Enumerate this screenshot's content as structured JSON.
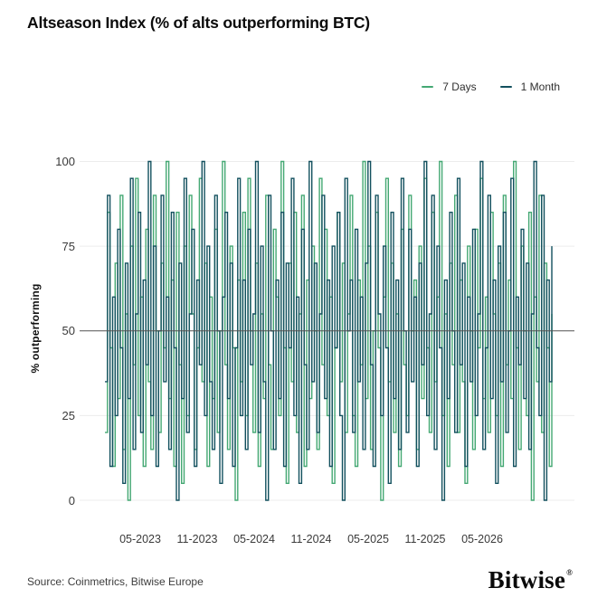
{
  "title": "Altseason Index (% of alts outperforming BTC)",
  "legend": {
    "items": [
      {
        "label": "7 Days",
        "color": "#44A873"
      },
      {
        "label": "1 Month",
        "color": "#12505E"
      }
    ]
  },
  "y_axis": {
    "title": "% outperforming",
    "tick_labels": [
      "100",
      "75",
      "50",
      "25",
      "0"
    ]
  },
  "x_axis": {
    "tick_labels": [
      "05-2023",
      "11-2023",
      "05-2024",
      "11-2024",
      "05-2025",
      "11-2025",
      "05-2026"
    ]
  },
  "footer": {
    "source": "Source: Coinmetrics, Bitwise Europe",
    "brand": "Bitwise",
    "registered_mark": "®"
  },
  "colors": {
    "grid": "#ECECEC",
    "reference_line": "#525252",
    "series_7d": "#44A873",
    "series_1m": "#12505E",
    "title_text": "#0B0B0B",
    "tick_text": "#3A3A3A"
  },
  "chart_data": {
    "type": "line",
    "title": "Altseason Index (% of alts outperforming BTC)",
    "xlabel": "",
    "ylabel": "% outperforming",
    "ylim": [
      0,
      100
    ],
    "y_ticks": [
      0,
      25,
      50,
      75,
      100
    ],
    "x_tick_labels": [
      "05-2023",
      "11-2023",
      "05-2024",
      "11-2024",
      "05-2025",
      "11-2025",
      "05-2026"
    ],
    "reference_line_y": 50,
    "grid": "horizontal",
    "legend_position": "top-right",
    "series": [
      {
        "name": "7 Days",
        "color": "#44A873",
        "values": [
          20,
          85,
          45,
          10,
          70,
          30,
          90,
          15,
          55,
          0,
          75,
          40,
          95,
          25,
          60,
          10,
          80,
          35,
          15,
          90,
          50,
          20,
          70,
          45,
          100,
          30,
          65,
          10,
          85,
          40,
          5,
          75,
          25,
          90,
          55,
          15,
          45,
          95,
          35,
          70,
          10,
          60,
          30,
          80,
          20,
          50,
          100,
          40,
          15,
          75,
          45,
          0,
          65,
          35,
          85,
          25,
          95,
          50,
          20,
          70,
          10,
          55,
          30,
          90,
          40,
          15,
          80,
          60,
          25,
          100,
          45,
          5,
          70,
          35,
          85,
          20,
          55,
          90,
          10,
          65,
          30,
          75,
          50,
          15,
          95,
          40,
          80,
          25,
          60,
          5,
          45,
          85,
          35,
          70,
          20,
          55,
          90,
          25,
          10,
          65,
          40,
          100,
          30,
          75,
          15,
          50,
          85,
          45,
          0,
          60,
          95,
          35,
          70,
          20,
          55,
          10,
          80,
          40,
          25,
          90,
          50,
          65,
          15,
          75,
          30,
          95,
          45,
          20,
          85,
          35,
          60,
          100,
          25,
          55,
          10,
          70,
          40,
          90,
          20,
          65,
          35,
          5,
          75,
          50,
          15,
          80,
          45,
          95,
          30,
          60,
          20,
          85,
          55,
          25,
          70,
          10,
          90,
          40,
          65,
          30,
          100,
          45,
          15,
          75,
          50,
          25,
          85,
          0,
          60,
          35,
          90,
          20,
          70,
          45,
          10,
          55
        ]
      },
      {
        "name": "1 Month",
        "color": "#12505E",
        "values": [
          35,
          90,
          10,
          60,
          25,
          80,
          45,
          5,
          70,
          30,
          95,
          15,
          55,
          85,
          20,
          65,
          40,
          100,
          25,
          75,
          10,
          50,
          90,
          35,
          60,
          15,
          85,
          45,
          0,
          70,
          30,
          95,
          20,
          55,
          80,
          10,
          65,
          40,
          100,
          25,
          75,
          35,
          15,
          90,
          50,
          5,
          60,
          85,
          30,
          70,
          10,
          45,
          95,
          25,
          65,
          15,
          80,
          40,
          55,
          100,
          20,
          75,
          35,
          0,
          90,
          50,
          15,
          65,
          30,
          85,
          10,
          70,
          45,
          95,
          25,
          60,
          5,
          80,
          40,
          15,
          100,
          35,
          70,
          20,
          55,
          90,
          30,
          65,
          10,
          75,
          45,
          85,
          25,
          0,
          95,
          50,
          65,
          20,
          80,
          35,
          60,
          15,
          70,
          100,
          40,
          10,
          90,
          55,
          25,
          75,
          45,
          5,
          85,
          30,
          65,
          15,
          95,
          50,
          20,
          80,
          35,
          60,
          10,
          70,
          40,
          100,
          25,
          55,
          90,
          15,
          75,
          45,
          0,
          65,
          30,
          85,
          50,
          20,
          95,
          40,
          70,
          10,
          60,
          35,
          80,
          25,
          55,
          100,
          15,
          45,
          90,
          30,
          65,
          5,
          75,
          35,
          85,
          20,
          50,
          95,
          10,
          60,
          40,
          80,
          30,
          70,
          15,
          55,
          100,
          45,
          25,
          90,
          0,
          65,
          35,
          75
        ]
      }
    ]
  }
}
